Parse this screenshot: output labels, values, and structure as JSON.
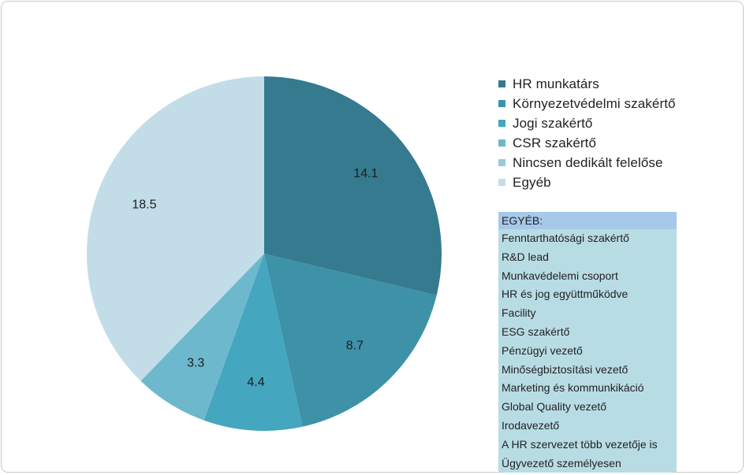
{
  "colors": {
    "HR munkatárs": "#357a8f",
    "Környezetvédelmi szakértő": "#3d92a8",
    "Jogi szakértő": "#44a6bf",
    "CSR szakértő": "#6db8cc",
    "Nincsen dedikált felelőse": "#9bcad8",
    "Egyéb": "#c2dde8",
    "other_box_bg": "#b8dce4",
    "other_header_bg": "#a6c8e9"
  },
  "chart_data": {
    "type": "pie",
    "title": "",
    "legend_position": "right",
    "slices": [
      {
        "label": "HR munkatárs",
        "value": 14.1,
        "value_label": "14.1"
      },
      {
        "label": "Környezetvédelmi szakértő",
        "value": 8.7,
        "value_label": "8.7"
      },
      {
        "label": "Jogi szakértő",
        "value": 4.4,
        "value_label": "4.4"
      },
      {
        "label": "CSR szakértő",
        "value": 3.3,
        "value_label": "3.3"
      },
      {
        "label": "Nincsen dedikált felelőse",
        "value": 0,
        "value_label": ""
      },
      {
        "label": "Egyéb",
        "value": 18.5,
        "value_label": "18.5"
      }
    ]
  },
  "legend": {
    "items": [
      "HR munkatárs",
      "Környezetvédelmi szakértő",
      "Jogi szakértő",
      "CSR szakértő",
      "Nincsen dedikált felelőse",
      "Egyéb"
    ]
  },
  "other_box": {
    "header": "EGYÉB:",
    "items": [
      "Fenntarthatósági szakértő",
      "R&D lead",
      "Munkavédelemi csoport",
      "HR és jog együttműködve",
      "Facility",
      "ESG szakértő",
      "Pénzügyi vezető",
      "Minőségbiztosítási vezető",
      "Marketing és kommunkikáció",
      "Global Quality vezető",
      "Irodavezető",
      "A HR szervezet több vezetője is",
      "Ügyvezető személyesen"
    ]
  }
}
